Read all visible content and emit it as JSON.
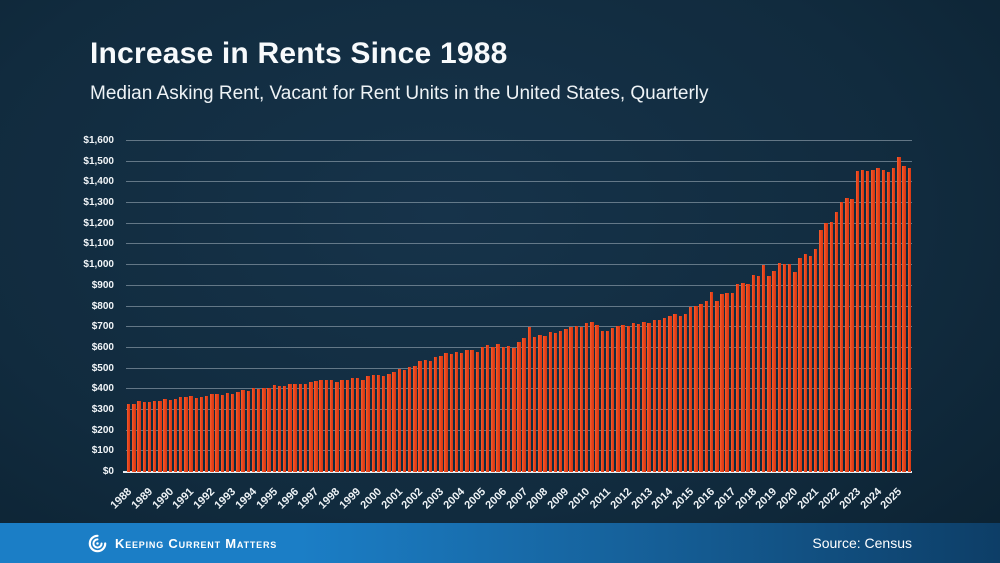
{
  "header": {
    "title": "Increase in Rents Since 1988",
    "subtitle": "Median Asking Rent, Vacant for Rent Units in the United States, Quarterly"
  },
  "footer": {
    "brand": "Keeping Current Matters",
    "logo_icon": "kcm-swirl-icon",
    "source": "Source: Census"
  },
  "colors": {
    "bar_orange": "#e8431c",
    "background_navy": "#0c2233",
    "footer_blue": "#1b7ec6",
    "gridline_gray": "#a5b4c0",
    "axis_baseline_white": "#e9eef2",
    "text_white": "#ffffff"
  },
  "chart_data": {
    "type": "bar",
    "title": "Increase in Rents Since 1988",
    "subtitle": "Median Asking Rent, Vacant for Rent Units in the United States, Quarterly",
    "xlabel": "",
    "ylabel": "",
    "ylim": [
      0,
      1600
    ],
    "y_tick_step": 100,
    "y_tick_prefix": "$",
    "grid": true,
    "legend": "none",
    "frequency": "quarterly",
    "x_start": "1988-Q1",
    "x_end": "2025-Q3",
    "years": [
      "1988",
      "1989",
      "1990",
      "1991",
      "1992",
      "1993",
      "1994",
      "1995",
      "1996",
      "1997",
      "1998",
      "1999",
      "2000",
      "2001",
      "2002",
      "2003",
      "2004",
      "2005",
      "2006",
      "2007",
      "2008",
      "2009",
      "2010",
      "2011",
      "2012",
      "2013",
      "2014",
      "2015",
      "2016",
      "2017",
      "2018",
      "2019",
      "2020",
      "2021",
      "2022",
      "2023",
      "2024",
      "2025"
    ],
    "series": [
      {
        "name": "Median Asking Rent (USD)",
        "values": [
          330,
          331,
          343,
          340,
          337,
          344,
          344,
          355,
          348,
          353,
          361,
          364,
          367,
          357,
          364,
          367,
          376,
          379,
          371,
          380,
          377,
          388,
          396,
          391,
          407,
          399,
          406,
          405,
          420,
          417,
          415,
          424,
          425,
          424,
          426,
          437,
          438,
          443,
          446,
          445,
          436,
          447,
          444,
          456,
          453,
          446,
          462,
          471,
          467,
          464,
          473,
          484,
          497,
          494,
          509,
          512,
          537,
          543,
          536,
          556,
          563,
          576,
          570,
          582,
          573,
          588,
          592,
          581,
          605,
          616,
          605,
          619,
          604,
          608,
          598,
          628,
          646,
          702,
          652,
          662,
          657,
          679,
          673,
          684,
          693,
          701,
          708,
          702,
          718,
          725,
          709,
          683,
          683,
          696,
          707,
          712,
          708,
          721,
          716,
          724,
          718,
          735,
          736,
          746,
          756,
          762,
          756,
          766,
          799,
          803,
          813,
          827,
          870,
          829,
          859,
          864,
          864,
          910,
          912,
          910,
          954,
          947,
          1003,
          947,
          972,
          1008,
          1005,
          1005,
          967,
          1033,
          1054,
          1042,
          1080,
          1169,
          1203,
          1207,
          1255,
          1303,
          1324,
          1320,
          1455,
          1460,
          1455,
          1462,
          1469,
          1461,
          1451,
          1468,
          1525,
          1481,
          1470
        ]
      }
    ]
  }
}
